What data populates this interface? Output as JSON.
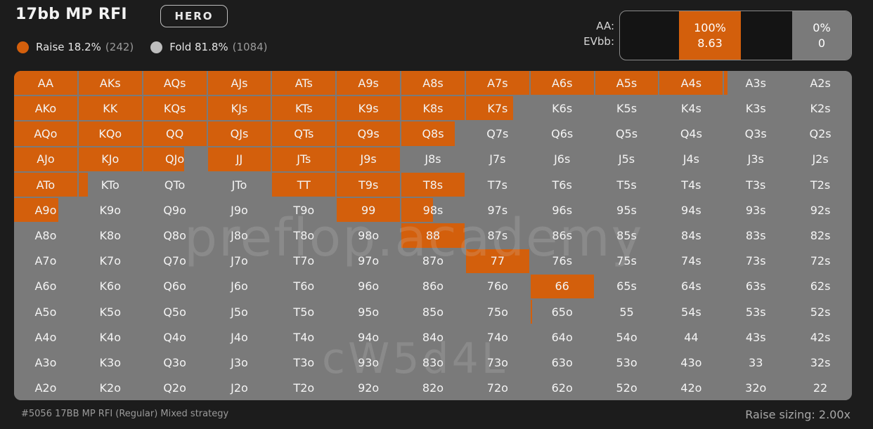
{
  "header": {
    "title": "17bb MP RFI",
    "badge": "HERO"
  },
  "legend": {
    "raise": {
      "label": "Raise 18.2%",
      "count": "(242)",
      "color": "#d35f0c"
    },
    "fold": {
      "label": "Fold 81.8%",
      "count": "(1084)",
      "color": "#bdbdbd"
    }
  },
  "summary": {
    "hand_label": "AA:",
    "ev_label": "EVbb:",
    "raise_pct": "100%",
    "raise_ev": "8.63",
    "fold_pct": "0%",
    "fold_ev": "0"
  },
  "colors": {
    "raise": "#d35f0c",
    "fold": "#7a7a7a",
    "background": "#1c1c1c"
  },
  "grid": {
    "rows": [
      [
        "AA",
        "AKs",
        "AQs",
        "AJs",
        "ATs",
        "A9s",
        "A8s",
        "A7s",
        "A6s",
        "A5s",
        "A4s",
        "A3s",
        "A2s"
      ],
      [
        "AKo",
        "KK",
        "KQs",
        "KJs",
        "KTs",
        "K9s",
        "K8s",
        "K7s",
        "K6s",
        "K5s",
        "K4s",
        "K3s",
        "K2s"
      ],
      [
        "AQo",
        "KQo",
        "QQ",
        "QJs",
        "QTs",
        "Q9s",
        "Q8s",
        "Q7s",
        "Q6s",
        "Q5s",
        "Q4s",
        "Q3s",
        "Q2s"
      ],
      [
        "AJo",
        "KJo",
        "QJo",
        "JJ",
        "JTs",
        "J9s",
        "J8s",
        "J7s",
        "J6s",
        "J5s",
        "J4s",
        "J3s",
        "J2s"
      ],
      [
        "ATo",
        "KTo",
        "QTo",
        "JTo",
        "TT",
        "T9s",
        "T8s",
        "T7s",
        "T6s",
        "T5s",
        "T4s",
        "T3s",
        "T2s"
      ],
      [
        "A9o",
        "K9o",
        "Q9o",
        "J9o",
        "T9o",
        "99",
        "98s",
        "97s",
        "96s",
        "95s",
        "94s",
        "93s",
        "92s"
      ],
      [
        "A8o",
        "K8o",
        "Q8o",
        "J8o",
        "T8o",
        "98o",
        "88",
        "87s",
        "86s",
        "85s",
        "84s",
        "83s",
        "82s"
      ],
      [
        "A7o",
        "K7o",
        "Q7o",
        "J7o",
        "T7o",
        "97o",
        "87o",
        "77",
        "76s",
        "75s",
        "74s",
        "73s",
        "72s"
      ],
      [
        "A6o",
        "K6o",
        "Q6o",
        "J6o",
        "T6o",
        "96o",
        "86o",
        "76o",
        "66",
        "65s",
        "64s",
        "63s",
        "62s"
      ],
      [
        "A5o",
        "K5o",
        "Q5o",
        "J5o",
        "T5o",
        "95o",
        "85o",
        "75o",
        "65o",
        "55",
        "54s",
        "53s",
        "52s"
      ],
      [
        "A4o",
        "K4o",
        "Q4o",
        "J4o",
        "T4o",
        "94o",
        "84o",
        "74o",
        "64o",
        "54o",
        "44",
        "43s",
        "42s"
      ],
      [
        "A3o",
        "K3o",
        "Q3o",
        "J3o",
        "T3o",
        "93o",
        "83o",
        "73o",
        "63o",
        "53o",
        "43o",
        "33",
        "32s"
      ],
      [
        "A2o",
        "K2o",
        "Q2o",
        "J2o",
        "T2o",
        "92o",
        "82o",
        "72o",
        "62o",
        "52o",
        "42o",
        "32o",
        "22"
      ]
    ],
    "raise_freq": [
      [
        1,
        1,
        1,
        1,
        1,
        1,
        1,
        1,
        1,
        1,
        1,
        0.05,
        0
      ],
      [
        1,
        1,
        1,
        1,
        1,
        1,
        1,
        0.75,
        0,
        0,
        0,
        0,
        0
      ],
      [
        1,
        1,
        1,
        1,
        1,
        1,
        0.85,
        0,
        0,
        0,
        0,
        0,
        0
      ],
      [
        1,
        1,
        0.65,
        1,
        1,
        1,
        0,
        0,
        0,
        0,
        0,
        0,
        0
      ],
      [
        1,
        0.15,
        0,
        0,
        1,
        1,
        1,
        0,
        0,
        0,
        0,
        0,
        0
      ],
      [
        0.7,
        0,
        0,
        0,
        0,
        1,
        0.5,
        0,
        0,
        0,
        0,
        0,
        0
      ],
      [
        0,
        0,
        0,
        0,
        0,
        0,
        1,
        0,
        0,
        0,
        0,
        0,
        0
      ],
      [
        0,
        0,
        0,
        0,
        0,
        0,
        0,
        1,
        0,
        0,
        0,
        0,
        0
      ],
      [
        0,
        0,
        0,
        0,
        0,
        0,
        0,
        0,
        1,
        0,
        0,
        0,
        0
      ],
      [
        0,
        0,
        0,
        0,
        0,
        0,
        0,
        0,
        0.03,
        0,
        0,
        0,
        0
      ],
      [
        0,
        0,
        0,
        0,
        0,
        0,
        0,
        0,
        0,
        0,
        0,
        0,
        0
      ],
      [
        0,
        0,
        0,
        0,
        0,
        0,
        0,
        0,
        0,
        0,
        0,
        0,
        0
      ],
      [
        0,
        0,
        0,
        0,
        0,
        0,
        0,
        0,
        0,
        0,
        0,
        0,
        0
      ]
    ]
  },
  "watermark": {
    "line1": "preflop.academy",
    "line2": "cW5d4L"
  },
  "footer": {
    "left": "#5056 17BB MP RFI (Regular) Mixed strategy",
    "right": "Raise sizing: 2.00x"
  }
}
